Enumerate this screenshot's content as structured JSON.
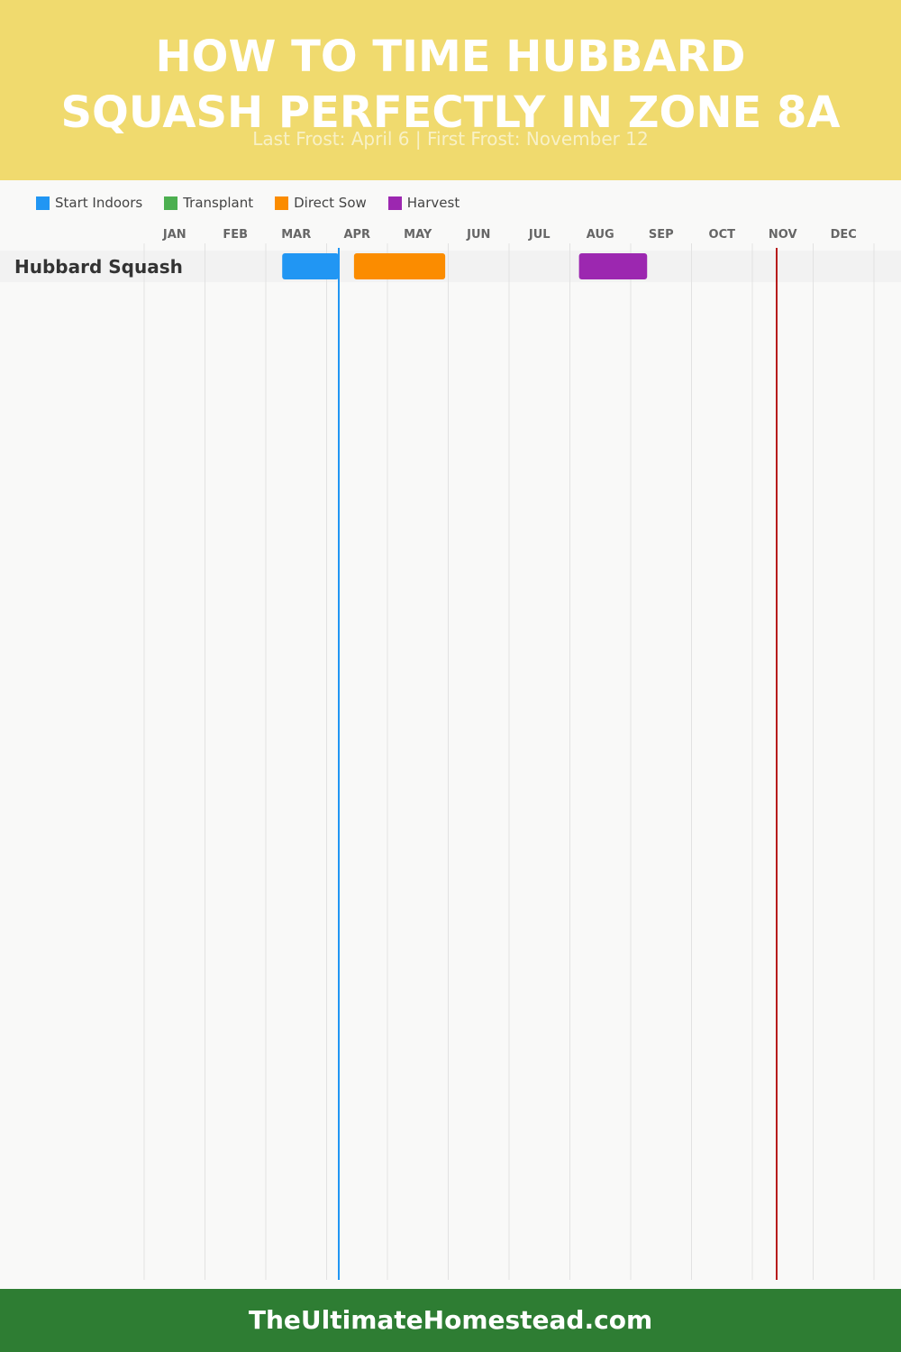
{
  "header": {
    "title_line1": "HOW TO TIME HUBBARD",
    "title_line2": "SQUASH PERFECTLY IN ZONE 8A",
    "subtitle": "Last Frost: April 6 | First Frost: November 12"
  },
  "legend": [
    {
      "label": "Start Indoors",
      "color": "#2196f3"
    },
    {
      "label": "Transplant",
      "color": "#4caf50"
    },
    {
      "label": "Direct Sow",
      "color": "#fb8c00"
    },
    {
      "label": "Harvest",
      "color": "#9c27b0"
    }
  ],
  "chart_data": {
    "type": "gantt",
    "months": [
      "JAN",
      "FEB",
      "MAR",
      "APR",
      "MAY",
      "JUN",
      "JUL",
      "AUG",
      "SEP",
      "OCT",
      "NOV",
      "DEC"
    ],
    "rows": [
      {
        "label": "Hubbard Squash",
        "tasks": [
          {
            "type": "Start Indoors",
            "start_month": 3.27,
            "end_month": 4.2,
            "color": "#2196f3"
          },
          {
            "type": "Direct Sow",
            "start_month": 4.45,
            "end_month": 5.95,
            "color": "#fb8c00"
          },
          {
            "type": "Harvest",
            "start_month": 8.15,
            "end_month": 9.27,
            "color": "#9c27b0"
          }
        ]
      }
    ],
    "markers": [
      {
        "name": "Last Frost",
        "date": "April 6",
        "month_position": 4.2,
        "color": "#2196f3"
      },
      {
        "name": "First Frost",
        "date": "November 12",
        "month_position": 11.4,
        "color": "#b71c1c"
      }
    ]
  },
  "footer": {
    "text": "TheUltimateHomestead.com"
  }
}
